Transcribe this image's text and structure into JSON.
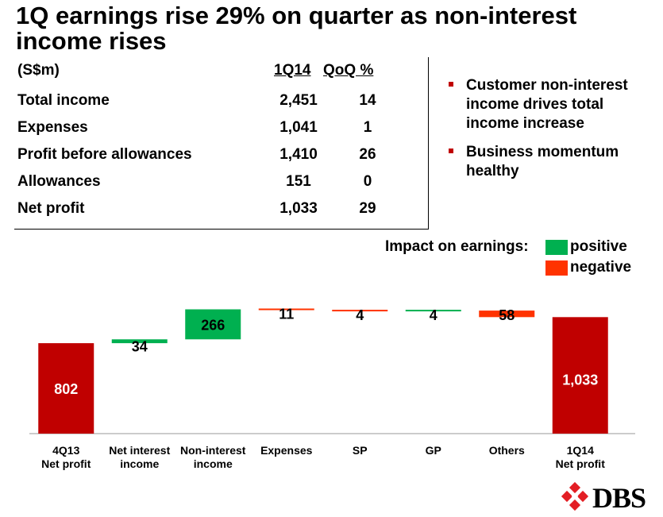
{
  "title_lines": [
    "1Q earnings rise 29% on quarter as non-interest",
    "income rises"
  ],
  "table": {
    "header_label": "(S$m)",
    "header_1q": "1Q14",
    "header_qoq": "QoQ %",
    "rows": [
      {
        "label": "Total income",
        "q1": "2,451",
        "qoq": "14"
      },
      {
        "label": "Expenses",
        "q1": "1,041",
        "qoq": "1"
      },
      {
        "label": "Profit before allowances",
        "q1": "1,410",
        "qoq": "26"
      },
      {
        "label": "Allowances",
        "q1": "151",
        "qoq": "0"
      },
      {
        "label": "Net profit",
        "q1": "1,033",
        "qoq": "29"
      }
    ]
  },
  "bullets": [
    "Customer non-interest income drives total income increase",
    "Business momentum healthy"
  ],
  "legend": {
    "title": "Impact on earnings:",
    "positive_label": "positive",
    "negative_label": "negative"
  },
  "colors": {
    "total": "#c00000",
    "positive": "#00b050",
    "negative": "#ff3300",
    "bullet": "#c00000"
  },
  "chart_data": {
    "type": "bar",
    "subtype": "waterfall",
    "categories": [
      "4Q13\nNet profit",
      "Net interest\nincome",
      "Non-interest\nincome",
      "Expenses",
      "SP",
      "GP",
      "Others",
      "1Q14\nNet profit"
    ],
    "values": [
      802,
      34,
      266,
      -11,
      -4,
      4,
      -58,
      1033
    ],
    "data_labels": [
      "802",
      "34",
      "266",
      "11",
      "4",
      "4",
      "58",
      "1,033"
    ],
    "kinds": [
      "total",
      "positive",
      "positive",
      "negative",
      "negative",
      "positive",
      "negative",
      "total"
    ],
    "ylim": [
      0,
      1150
    ],
    "grid": false,
    "legend_position": "top-right"
  },
  "logo_text": "DBS"
}
